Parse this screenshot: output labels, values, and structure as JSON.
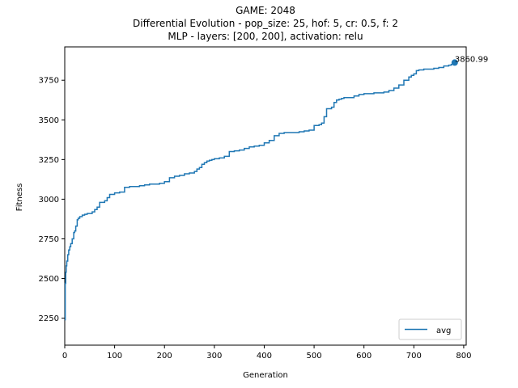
{
  "chart_data": {
    "type": "line",
    "title_lines": [
      "GAME: 2048",
      "Differential Evolution - pop_size: 25, hof: 5, cr: 0.5, f: 2",
      "MLP - layers: [200, 200], activation: relu"
    ],
    "xlabel": "Generation",
    "ylabel": "Fitness",
    "xlim": [
      0,
      805
    ],
    "ylim": [
      2080,
      3960
    ],
    "xticks": [
      0,
      100,
      200,
      300,
      400,
      500,
      600,
      700,
      800
    ],
    "yticks": [
      2250,
      2500,
      2750,
      3000,
      3250,
      3500,
      3750
    ],
    "grid": false,
    "legend_position": "lower-right",
    "series": [
      {
        "name": "avg",
        "color": "#1f77b4",
        "style": "steps",
        "x": [
          0,
          1,
          2,
          3,
          4,
          6,
          8,
          10,
          12,
          15,
          18,
          20,
          22,
          25,
          27,
          30,
          35,
          40,
          45,
          55,
          60,
          65,
          70,
          80,
          85,
          90,
          100,
          110,
          120,
          130,
          150,
          160,
          170,
          190,
          200,
          210,
          220,
          230,
          240,
          250,
          260,
          265,
          270,
          275,
          280,
          285,
          290,
          295,
          300,
          310,
          320,
          330,
          340,
          350,
          360,
          370,
          380,
          390,
          400,
          410,
          420,
          430,
          440,
          450,
          470,
          480,
          490,
          500,
          510,
          515,
          520,
          525,
          535,
          540,
          545,
          550,
          555,
          560,
          580,
          590,
          600,
          620,
          640,
          650,
          660,
          670,
          680,
          690,
          695,
          700,
          705,
          710,
          720,
          740,
          750,
          760,
          770,
          775,
          780,
          785
        ],
        "y": [
          2240,
          2470,
          2540,
          2580,
          2610,
          2650,
          2680,
          2700,
          2720,
          2750,
          2790,
          2800,
          2830,
          2870,
          2880,
          2890,
          2900,
          2905,
          2910,
          2920,
          2935,
          2950,
          2980,
          2990,
          3010,
          3030,
          3040,
          3045,
          3075,
          3080,
          3085,
          3090,
          3095,
          3100,
          3110,
          3135,
          3145,
          3150,
          3160,
          3165,
          3175,
          3190,
          3200,
          3220,
          3230,
          3240,
          3245,
          3250,
          3255,
          3260,
          3270,
          3300,
          3305,
          3310,
          3320,
          3330,
          3335,
          3340,
          3355,
          3370,
          3400,
          3415,
          3420,
          3420,
          3425,
          3430,
          3435,
          3465,
          3470,
          3480,
          3520,
          3570,
          3580,
          3610,
          3625,
          3630,
          3635,
          3640,
          3650,
          3660,
          3665,
          3670,
          3675,
          3685,
          3700,
          3720,
          3750,
          3770,
          3780,
          3790,
          3810,
          3815,
          3820,
          3825,
          3830,
          3840,
          3845,
          3850,
          3855,
          3860.99
        ]
      }
    ],
    "marker": {
      "x": 782,
      "y": 3860.99,
      "label": "3860.99"
    }
  }
}
